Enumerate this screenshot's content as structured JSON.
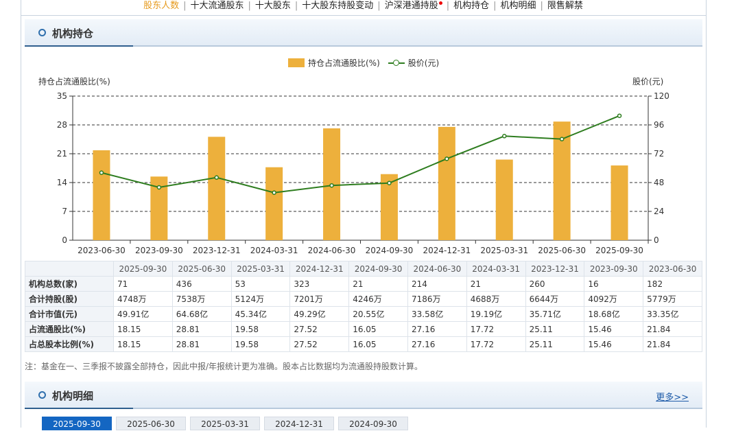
{
  "nav": {
    "items": [
      {
        "label": "股东人数",
        "active": true,
        "dot": false
      },
      {
        "label": "十大流通股东",
        "active": false,
        "dot": false
      },
      {
        "label": "十大股东",
        "active": false,
        "dot": false
      },
      {
        "label": "十大股东持股变动",
        "active": false,
        "dot": false
      },
      {
        "label": "沪深港通持股",
        "active": false,
        "dot": true
      },
      {
        "label": "机构持仓",
        "active": false,
        "dot": false
      },
      {
        "label": "机构明细",
        "active": false,
        "dot": false
      },
      {
        "label": "限售解禁",
        "active": false,
        "dot": false
      }
    ]
  },
  "section1": {
    "title": "机构持仓"
  },
  "section2": {
    "title": "机构明细",
    "more": "更多>>"
  },
  "chart_data": {
    "type": "bar",
    "categories": [
      "2023-06-30",
      "2023-09-30",
      "2023-12-31",
      "2024-03-31",
      "2024-06-30",
      "2024-09-30",
      "2024-12-31",
      "2025-03-31",
      "2025-06-30",
      "2025-09-30"
    ],
    "series": [
      {
        "name": "持仓占流通股比(%)",
        "type": "bar",
        "axis": "left",
        "color": "#edb03c",
        "values": [
          21.84,
          15.46,
          25.11,
          17.72,
          27.16,
          16.05,
          27.52,
          19.58,
          28.81,
          18.15
        ]
      },
      {
        "name": "股价(元)",
        "type": "line",
        "axis": "right",
        "color": "#2e7d1f",
        "values": [
          56.2,
          44.0,
          52.2,
          39.6,
          45.6,
          47.6,
          67.8,
          86.7,
          84.2,
          103.6
        ]
      }
    ],
    "ylabel": "持仓占流通股比(%)",
    "y2label": "股价(元)",
    "ylim": [
      0,
      35
    ],
    "y2lim": [
      0,
      120
    ],
    "yticks": [
      0,
      7,
      14,
      21,
      28,
      35
    ],
    "y2ticks": [
      0,
      24,
      48,
      72,
      96,
      120
    ],
    "grid": true,
    "legend": "top-center"
  },
  "table": {
    "columns": [
      "2025-09-30",
      "2025-06-30",
      "2025-03-31",
      "2024-12-31",
      "2024-09-30",
      "2024-06-30",
      "2024-03-31",
      "2023-12-31",
      "2023-09-30",
      "2023-06-30"
    ],
    "rows": [
      {
        "label": "机构总数(家)",
        "values": [
          "71",
          "436",
          "53",
          "323",
          "21",
          "214",
          "21",
          "260",
          "16",
          "182"
        ]
      },
      {
        "label": "合计持股(股)",
        "values": [
          "4748万",
          "7538万",
          "5124万",
          "7201万",
          "4246万",
          "7186万",
          "4688万",
          "6644万",
          "4092万",
          "5779万"
        ]
      },
      {
        "label": "合计市值(元)",
        "values": [
          "49.91亿",
          "64.68亿",
          "45.34亿",
          "49.29亿",
          "20.55亿",
          "33.58亿",
          "19.19亿",
          "35.71亿",
          "18.68亿",
          "33.35亿"
        ]
      },
      {
        "label": "占流通股比(%)",
        "values": [
          "18.15",
          "28.81",
          "19.58",
          "27.52",
          "16.05",
          "27.16",
          "17.72",
          "25.11",
          "15.46",
          "21.84"
        ]
      },
      {
        "label": "占总股本比例(%)",
        "values": [
          "18.15",
          "28.81",
          "19.58",
          "27.52",
          "16.05",
          "27.16",
          "17.72",
          "25.11",
          "15.46",
          "21.84"
        ]
      }
    ]
  },
  "note": "注：基金在一、三季报不披露全部持仓，因此中报/年报统计更为准确。股本占比数据均为流通股持股数计算。",
  "tabs": [
    {
      "label": "2025-09-30",
      "active": true
    },
    {
      "label": "2025-06-30",
      "active": false
    },
    {
      "label": "2025-03-31",
      "active": false
    },
    {
      "label": "2024-12-31",
      "active": false
    },
    {
      "label": "2024-09-30",
      "active": false
    }
  ]
}
